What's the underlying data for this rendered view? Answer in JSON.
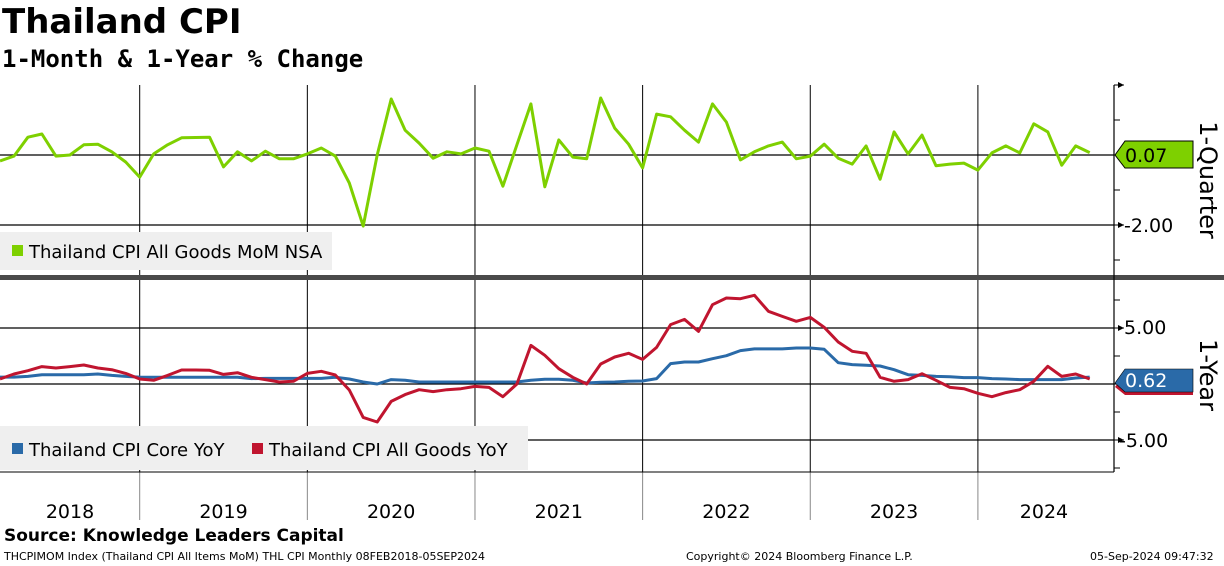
{
  "header": {
    "title": "Thailand CPI",
    "subtitle": "1-Month & 1-Year % Change"
  },
  "footer": {
    "source": "Source: Knowledge Leaders Capital",
    "index_info": "THCPIMOM Index (Thailand CPI All Items MoM) THL CPI  Monthly 08FEB2018-05SEP2024",
    "copyright": "Copyright© 2024 Bloomberg Finance L.P.",
    "timestamp": "05-Sep-2024 09:47:32"
  },
  "colors": {
    "green": "#7ed000",
    "blue": "#2a6aa8",
    "red": "#c0152f",
    "legend_bg": "#efefef"
  },
  "chart_data": [
    {
      "type": "line",
      "panel": "top",
      "axis_title": "1-Quarter",
      "x_start": "Mar 2018",
      "x_frequency": "monthly",
      "x_tick_labels": [
        "2018",
        "2019",
        "2020",
        "2021",
        "2022",
        "2023",
        "2024"
      ],
      "y_tick_labels": [
        "-2.00"
      ],
      "ylim": [
        -3.2,
        2
      ],
      "grid": true,
      "legend_position": "bottom-left",
      "last_value_label": "0.07",
      "series": [
        {
          "name": "Thailand CPI All Goods MoM NSA",
          "color": "#7ed000",
          "values": [
            -0.17,
            -0.03,
            0.51,
            0.6,
            -0.03,
            0,
            0.29,
            0.31,
            0.09,
            -0.2,
            -0.63,
            0.03,
            0.29,
            0.49,
            0.5,
            0.51,
            -0.34,
            0.09,
            -0.17,
            0.11,
            -0.11,
            -0.11,
            0.03,
            0.2,
            -0.03,
            -0.8,
            -2.03,
            0,
            1.6,
            0.71,
            0.34,
            -0.09,
            0.09,
            0.03,
            0.2,
            0.11,
            -0.89,
            0.29,
            1.46,
            -0.91,
            0.43,
            -0.06,
            -0.11,
            1.63,
            0.77,
            0.31,
            -0.37,
            1.17,
            1.09,
            0.71,
            0.37,
            1.46,
            0.94,
            -0.14,
            0.09,
            0.26,
            0.37,
            -0.11,
            -0.03,
            0.31,
            -0.09,
            -0.26,
            0.26,
            -0.69,
            0.66,
            0.03,
            0.57,
            -0.31,
            -0.26,
            -0.23,
            -0.43,
            0.06,
            0.26,
            0.06,
            0.89,
            0.66,
            -0.29,
            0.26,
            0.07
          ]
        }
      ]
    },
    {
      "type": "line",
      "panel": "bottom",
      "axis_title": "1-Year",
      "x_start": "Mar 2018",
      "x_frequency": "monthly",
      "y_tick_labels": [
        "5.00",
        "-5.00"
      ],
      "ylim": [
        -7.8,
        9.5
      ],
      "grid": true,
      "legend_position": "bottom-left",
      "last_value_label": "0.62",
      "series": [
        {
          "name": "Thailand CPI Core YoY",
          "color": "#2a6aa8",
          "values": [
            0.62,
            0.62,
            0.68,
            0.83,
            0.83,
            0.83,
            0.83,
            0.89,
            0.77,
            0.68,
            0.62,
            0.6,
            0.6,
            0.6,
            0.6,
            0.6,
            0.6,
            0.6,
            0.48,
            0.5,
            0.5,
            0.5,
            0.5,
            0.5,
            0.6,
            0.45,
            0.18,
            0,
            0.39,
            0.33,
            0.18,
            0.18,
            0.18,
            0.18,
            0.18,
            0.18,
            0.18,
            0.18,
            0.33,
            0.42,
            0.42,
            0.33,
            0.09,
            0.15,
            0.18,
            0.24,
            0.27,
            0.48,
            1.82,
            1.96,
            1.96,
            2.26,
            2.53,
            2.98,
            3.13,
            3.13,
            3.13,
            3.21,
            3.21,
            3.1,
            1.9,
            1.73,
            1.67,
            1.61,
            1.28,
            0.83,
            0.77,
            0.68,
            0.65,
            0.57,
            0.57,
            0.48,
            0.45,
            0.39,
            0.39,
            0.39,
            0.39,
            0.54,
            0.62
          ]
        },
        {
          "name": "Thailand CPI All Goods YoY",
          "color": "#c0152f",
          "values": [
            0.45,
            0.89,
            1.19,
            1.55,
            1.43,
            1.55,
            1.7,
            1.43,
            1.28,
            0.95,
            0.45,
            0.33,
            0.77,
            1.25,
            1.25,
            1.22,
            0.86,
            1.01,
            0.6,
            0.39,
            0.18,
            0.24,
            0.95,
            1.13,
            0.8,
            -0.54,
            -2.98,
            -3.39,
            -1.55,
            -0.95,
            -0.51,
            -0.68,
            -0.51,
            -0.42,
            -0.21,
            -0.3,
            -1.13,
            0,
            3.45,
            2.56,
            1.37,
            0.6,
            0,
            1.79,
            2.41,
            2.74,
            2.2,
            3.27,
            5.3,
            5.77,
            4.7,
            7.08,
            7.68,
            7.62,
            7.92,
            6.49,
            6.04,
            5.6,
            5.95,
            5.06,
            3.75,
            2.92,
            2.74,
            0.6,
            0.24,
            0.39,
            0.92,
            0.33,
            -0.3,
            -0.42,
            -0.83,
            -1.13,
            -0.77,
            -0.51,
            0.24,
            1.58,
            0.68,
            0.89,
            0.45
          ]
        }
      ]
    }
  ]
}
